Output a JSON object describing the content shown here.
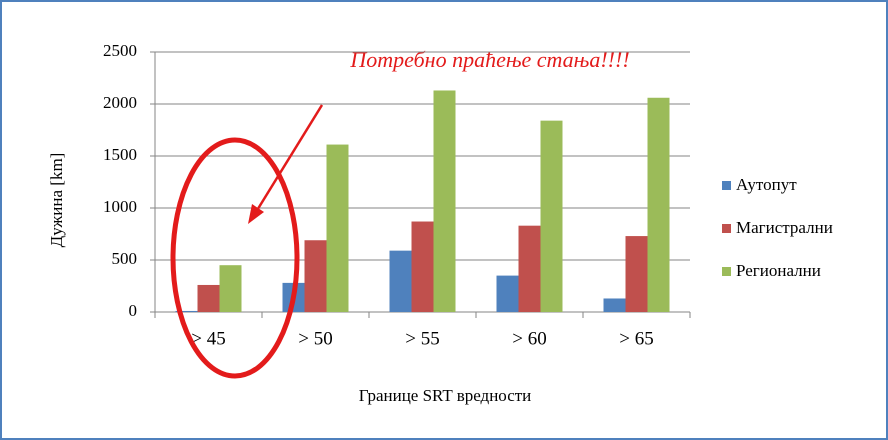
{
  "chart_data": {
    "type": "bar",
    "annotation": "Потребно праћење стања!!!!",
    "y_label": "Дужина [km]",
    "x_label": "Границе SRT вредности",
    "categories": [
      "> 45",
      "> 50",
      "> 55",
      "> 60",
      "> 65"
    ],
    "series": [
      {
        "name": "Аутопут",
        "color": "#4f81bd",
        "values": [
          10,
          280,
          590,
          350,
          130
        ]
      },
      {
        "name": "Магистрални",
        "color": "#c0504d",
        "values": [
          260,
          690,
          870,
          830,
          730
        ]
      },
      {
        "name": "Регионални",
        "color": "#9bbb59",
        "values": [
          450,
          1610,
          2130,
          1840,
          2060
        ]
      }
    ],
    "ylim": [
      0,
      2500
    ],
    "yticks": [
      0,
      500,
      1000,
      1500,
      2000,
      2500
    ],
    "grid": true,
    "legend": "right"
  }
}
